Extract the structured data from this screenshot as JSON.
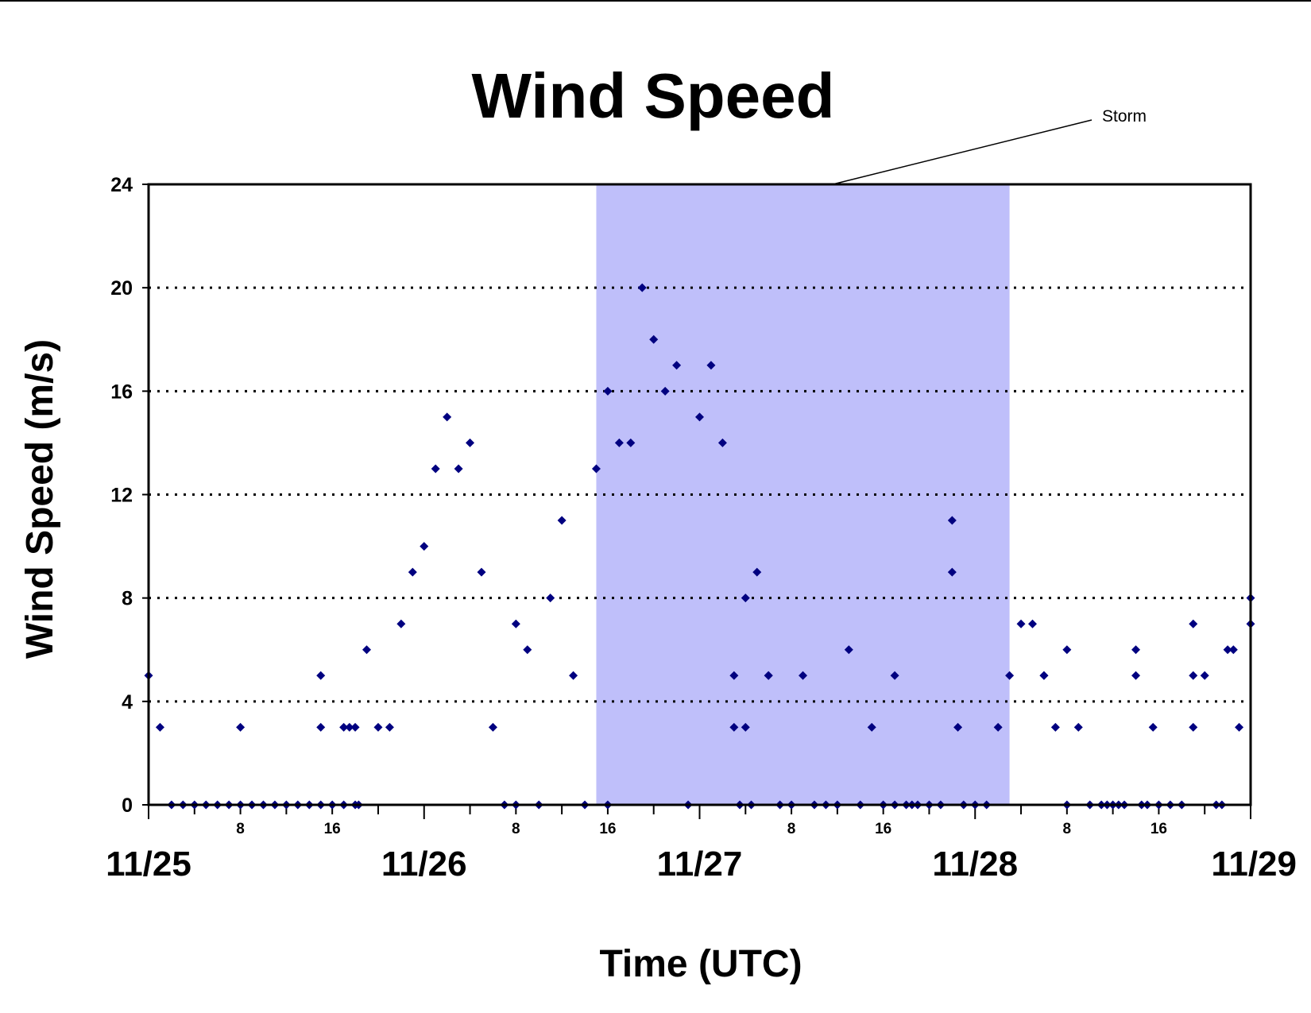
{
  "chart_data": {
    "type": "scatter",
    "title": "Wind Speed",
    "xlabel": "Time (UTC)",
    "ylabel": "Wind Speed (m/s)",
    "ylim": [
      0,
      24
    ],
    "xlim": [
      "11/25 00:00",
      "11/29 00:00"
    ],
    "y_ticks": [
      "0",
      "4",
      "8",
      "12",
      "16",
      "20",
      "24"
    ],
    "y_tick_values": [
      0,
      4,
      8,
      12,
      16,
      20,
      24
    ],
    "grid": "horizontal dotted",
    "date_labels": [
      {
        "label": "11/25",
        "hour": 0
      },
      {
        "label": "11/26",
        "hour": 24
      },
      {
        "label": "11/27",
        "hour": 48
      },
      {
        "label": "11/28",
        "hour": 72
      },
      {
        "label": "11/29",
        "hour": 96
      }
    ],
    "hour_labels": [
      {
        "label": "8",
        "hour": 8
      },
      {
        "label": "16",
        "hour": 16
      },
      {
        "label": "8",
        "hour": 32
      },
      {
        "label": "16",
        "hour": 40
      },
      {
        "label": "8",
        "hour": 56
      },
      {
        "label": "16",
        "hour": 64
      },
      {
        "label": "8",
        "hour": 80
      },
      {
        "label": "16",
        "hour": 88
      }
    ],
    "storm_band": {
      "label": "Storm",
      "start_hour": 39,
      "end_hour": 75,
      "color": "#bfbffa"
    },
    "marker_color": "#000080",
    "points": [
      [
        0,
        5
      ],
      [
        1,
        3
      ],
      [
        2,
        0
      ],
      [
        3,
        0
      ],
      [
        4,
        0
      ],
      [
        5,
        0
      ],
      [
        6,
        0
      ],
      [
        7,
        0
      ],
      [
        8,
        3
      ],
      [
        8,
        0
      ],
      [
        9,
        0
      ],
      [
        10,
        0
      ],
      [
        11,
        0
      ],
      [
        12,
        0
      ],
      [
        13,
        0
      ],
      [
        14,
        0
      ],
      [
        15,
        5
      ],
      [
        15,
        3
      ],
      [
        15,
        0
      ],
      [
        16,
        0
      ],
      [
        17,
        3
      ],
      [
        17,
        0
      ],
      [
        17.5,
        3
      ],
      [
        18,
        3
      ],
      [
        18,
        0
      ],
      [
        18.3,
        0
      ],
      [
        19,
        6
      ],
      [
        20,
        3
      ],
      [
        21,
        3
      ],
      [
        22,
        7
      ],
      [
        23,
        9
      ],
      [
        24,
        10
      ],
      [
        25,
        13
      ],
      [
        26,
        15
      ],
      [
        27,
        13
      ],
      [
        28,
        14
      ],
      [
        29,
        9
      ],
      [
        30,
        3
      ],
      [
        31,
        0
      ],
      [
        32,
        7
      ],
      [
        32,
        0
      ],
      [
        33,
        6
      ],
      [
        34,
        0
      ],
      [
        35,
        8
      ],
      [
        36,
        11
      ],
      [
        37,
        5
      ],
      [
        38,
        0
      ],
      [
        39,
        13
      ],
      [
        40,
        16
      ],
      [
        40,
        0
      ],
      [
        41,
        14
      ],
      [
        42,
        14
      ],
      [
        43,
        20
      ],
      [
        44,
        18
      ],
      [
        45,
        16
      ],
      [
        46,
        17
      ],
      [
        47,
        0
      ],
      [
        48,
        15
      ],
      [
        49,
        17
      ],
      [
        50,
        14
      ],
      [
        51,
        5
      ],
      [
        51,
        3
      ],
      [
        51.5,
        0
      ],
      [
        52,
        8
      ],
      [
        52,
        3
      ],
      [
        52.5,
        0
      ],
      [
        53,
        9
      ],
      [
        54,
        5
      ],
      [
        54,
        5
      ],
      [
        55,
        0
      ],
      [
        56,
        0
      ],
      [
        57,
        5
      ],
      [
        58,
        0
      ],
      [
        59,
        0
      ],
      [
        60,
        0
      ],
      [
        61,
        6
      ],
      [
        62,
        0
      ],
      [
        63,
        3
      ],
      [
        64,
        0
      ],
      [
        65,
        5
      ],
      [
        65,
        0
      ],
      [
        66,
        0
      ],
      [
        66.5,
        0
      ],
      [
        67,
        0
      ],
      [
        68,
        0
      ],
      [
        69,
        0
      ],
      [
        70,
        11
      ],
      [
        70,
        9
      ],
      [
        70.5,
        3
      ],
      [
        71,
        0
      ],
      [
        72,
        0
      ],
      [
        73,
        0
      ],
      [
        74,
        3
      ],
      [
        75,
        5
      ],
      [
        76,
        7
      ],
      [
        77,
        7
      ],
      [
        78,
        5
      ],
      [
        78,
        5
      ],
      [
        79,
        3
      ],
      [
        80,
        6
      ],
      [
        80,
        0
      ],
      [
        81,
        3
      ],
      [
        82,
        0
      ],
      [
        83,
        0
      ],
      [
        83.5,
        0
      ],
      [
        84,
        0
      ],
      [
        84.5,
        0
      ],
      [
        85,
        0
      ],
      [
        86,
        6
      ],
      [
        86,
        5
      ],
      [
        86.5,
        0
      ],
      [
        87,
        0
      ],
      [
        87.5,
        3
      ],
      [
        88,
        0
      ],
      [
        89,
        0
      ],
      [
        90,
        0
      ],
      [
        91,
        3
      ],
      [
        91,
        5
      ],
      [
        91,
        7
      ],
      [
        92,
        5
      ],
      [
        93,
        0
      ],
      [
        93.5,
        0
      ],
      [
        94,
        6
      ],
      [
        94.5,
        6
      ],
      [
        95,
        3
      ],
      [
        96,
        8
      ],
      [
        96,
        7
      ]
    ]
  }
}
